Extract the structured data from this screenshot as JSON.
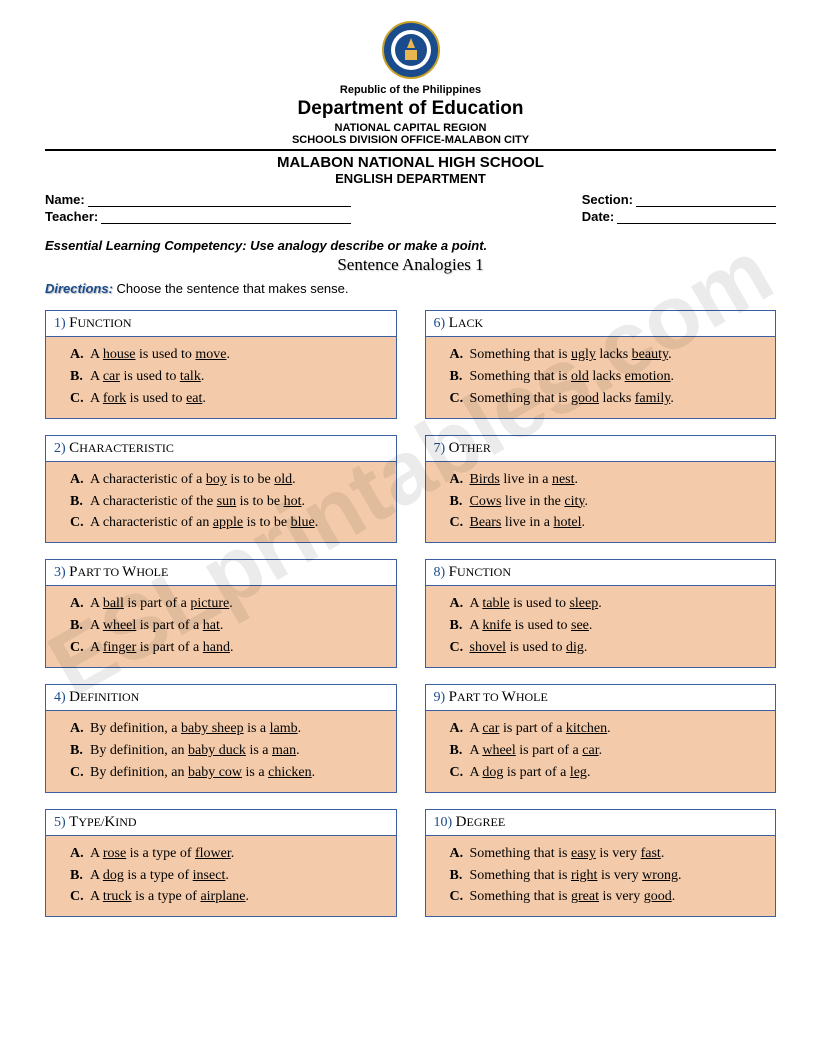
{
  "header": {
    "republic": "Republic of the Philippines",
    "department": "Department of Education",
    "region": "NATIONAL CAPITAL REGION",
    "division": "SCHOOLS DIVISION OFFICE-MALABON CITY",
    "school": "MALABON NATIONAL HIGH SCHOOL",
    "eng_dept": "ENGLISH DEPARTMENT"
  },
  "info": {
    "name_label": "Name:",
    "teacher_label": "Teacher:",
    "section_label": "Section:",
    "date_label": "Date:"
  },
  "competency": "Essential Learning Competency: Use analogy describe or make a point.",
  "title": "Sentence Analogies 1",
  "directions_label": "Directions:",
  "directions_text": " Choose the sentence that makes sense.",
  "watermark": "ESLprintables.com",
  "questions_left": [
    {
      "num": "1)",
      "type_first": "F",
      "type_rest": "UNCTION",
      "opts": [
        {
          "l": "A.",
          "pre": "A ",
          "u1": "house",
          "mid": " is used to ",
          "u2": "move",
          "post": "."
        },
        {
          "l": "B.",
          "pre": "A ",
          "u1": "car",
          "mid": " is used to ",
          "u2": "talk",
          "post": "."
        },
        {
          "l": "C.",
          "pre": "A ",
          "u1": "fork",
          "mid": " is used to ",
          "u2": "eat",
          "post": "."
        }
      ]
    },
    {
      "num": "2)",
      "type_first": "C",
      "type_rest": "HARACTERISTIC",
      "opts": [
        {
          "l": "A.",
          "pre": "A characteristic of a ",
          "u1": "boy",
          "mid": " is to be ",
          "u2": "old",
          "post": "."
        },
        {
          "l": "B.",
          "pre": "A characteristic of the ",
          "u1": "sun",
          "mid": " is to be ",
          "u2": "hot",
          "post": "."
        },
        {
          "l": "C.",
          "pre": "A characteristic of an ",
          "u1": "apple",
          "mid": " is to be ",
          "u2": "blue",
          "post": "."
        }
      ]
    },
    {
      "num": "3)",
      "type_first": "P",
      "type_rest": "ART TO ",
      "type_first2": "W",
      "type_rest2": "HOLE",
      "opts": [
        {
          "l": "A.",
          "pre": "A ",
          "u1": "ball",
          "mid": " is part of a ",
          "u2": "picture",
          "post": "."
        },
        {
          "l": "B.",
          "pre": "A ",
          "u1": "wheel",
          "mid": " is part of a ",
          "u2": "hat",
          "post": "."
        },
        {
          "l": "C.",
          "pre": "A ",
          "u1": "finger",
          "mid": " is part of a ",
          "u2": "hand",
          "post": "."
        }
      ]
    },
    {
      "num": "4)",
      "type_first": "D",
      "type_rest": "EFINITION",
      "opts": [
        {
          "l": "A.",
          "pre": "By definition, a ",
          "u1": "baby sheep",
          "mid": " is a ",
          "u2": "lamb",
          "post": "."
        },
        {
          "l": "B.",
          "pre": "By definition, an ",
          "u1": "baby duck",
          "mid": " is a ",
          "u2": "man",
          "post": "."
        },
        {
          "l": "C.",
          "pre": "By definition, an ",
          "u1": "baby cow",
          "mid": " is a ",
          "u2": "chicken",
          "post": "."
        }
      ]
    },
    {
      "num": "5)",
      "type_first": "T",
      "type_rest": "YPE/",
      "type_first2": "K",
      "type_rest2": "IND",
      "opts": [
        {
          "l": "A.",
          "pre": "A ",
          "u1": "rose",
          "mid": " is a type of ",
          "u2": "flower",
          "post": "."
        },
        {
          "l": "B.",
          "pre": "A ",
          "u1": "dog",
          "mid": " is a type of ",
          "u2": "insect",
          "post": "."
        },
        {
          "l": "C.",
          "pre": "A ",
          "u1": "truck",
          "mid": " is a type of ",
          "u2": "airplane",
          "post": "."
        }
      ]
    }
  ],
  "questions_right": [
    {
      "num": "6)",
      "type_first": "L",
      "type_rest": "ACK",
      "opts": [
        {
          "l": "A.",
          "pre": "Something that is ",
          "u1": "ugly",
          "mid": " lacks ",
          "u2": "beauty",
          "post": "."
        },
        {
          "l": "B.",
          "pre": "Something that is ",
          "u1": "old",
          "mid": " lacks ",
          "u2": "emotion",
          "post": "."
        },
        {
          "l": "C.",
          "pre": "Something that is ",
          "u1": "good",
          "mid": " lacks ",
          "u2": "family",
          "post": "."
        }
      ]
    },
    {
      "num": "7)",
      "type_first": "O",
      "type_rest": "THER",
      "opts": [
        {
          "l": "A.",
          "u1": "Birds",
          "mid": " live in a ",
          "u2": "nest",
          "post": "."
        },
        {
          "l": "B.",
          "u1": "Cows",
          "mid": " live in the ",
          "u2": "city",
          "post": "."
        },
        {
          "l": "C.",
          "u1": "Bears",
          "mid": " live in a ",
          "u2": "hotel",
          "post": "."
        }
      ]
    },
    {
      "num": "8)",
      "type_first": "F",
      "type_rest": "UNCTION",
      "opts": [
        {
          "l": "A.",
          "pre": "A ",
          "u1": "table",
          "mid": " is used to ",
          "u2": "sleep",
          "post": "."
        },
        {
          "l": "B.",
          "pre": "A ",
          "u1": "knife",
          "mid": " is used to ",
          "u2": "see",
          "post": "."
        },
        {
          "l": "C.",
          "pre": " ",
          "u1": "shovel",
          "mid": " is used to ",
          "u2": "dig",
          "post": "."
        }
      ]
    },
    {
      "num": "9)",
      "type_first": "P",
      "type_rest": "ART TO ",
      "type_first2": "W",
      "type_rest2": "HOLE",
      "opts": [
        {
          "l": "A.",
          "pre": "A ",
          "u1": "car",
          "mid": " is part of a ",
          "u2": "kitchen",
          "post": "."
        },
        {
          "l": "B.",
          "pre": "A ",
          "u1": "wheel",
          "mid": " is part of a ",
          "u2": "car",
          "post": "."
        },
        {
          "l": "C.",
          "pre": "A ",
          "u1": "dog",
          "mid": " is part of a ",
          "u2": "leg",
          "post": "."
        }
      ]
    },
    {
      "num": "10)",
      "type_first": "D",
      "type_rest": "EGREE",
      "opts": [
        {
          "l": "A.",
          "pre": "Something that is ",
          "u1": "easy",
          "mid": " is very ",
          "u2": "fast",
          "post": "."
        },
        {
          "l": "B.",
          "pre": "Something that is ",
          "u1": "right",
          "mid": " is very ",
          "u2": "wrong",
          "post": "."
        },
        {
          "l": "C.",
          "pre": "Something that is ",
          "u1": "great",
          "mid": " is very ",
          "u2": "good",
          "post": "."
        }
      ]
    }
  ]
}
